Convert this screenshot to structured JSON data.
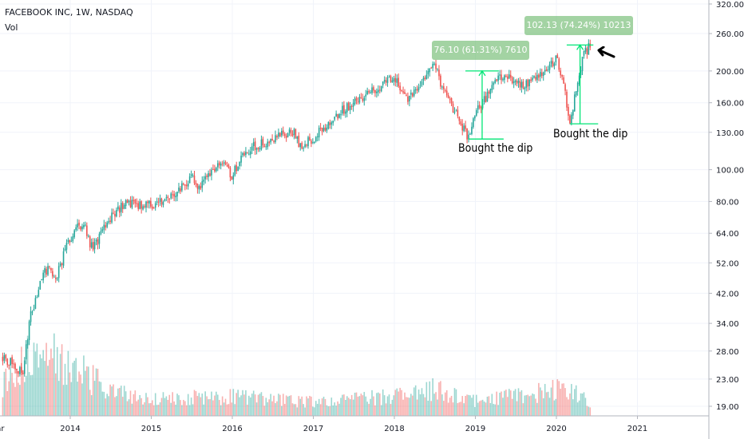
{
  "header": {
    "symbol": "FACEBOOK INC, 1W, NASDAQ",
    "indicator": "Vol"
  },
  "colors": {
    "up": "#26a69a",
    "down": "#ef5350",
    "annotation": "#00e676"
  },
  "annotations": {
    "measure_1": "76.10 (61.31%) 7610",
    "measure_2": "102.13 (74.24%) 10213",
    "label_1": "Bought the dip",
    "label_2": "Bought the dip"
  },
  "chart_data": {
    "type": "candlestick",
    "title": "FACEBOOK INC, 1W, NASDAQ",
    "y_scale": "log",
    "y_ticks": [
      "320.00",
      "260.00",
      "200.00",
      "160.00",
      "130.00",
      "100.00",
      "80.00",
      "64.00",
      "52.00",
      "42.00",
      "34.00",
      "28.00",
      "23.00",
      "19.00"
    ],
    "x_ticks": [
      "Mar",
      "2014",
      "2015",
      "2016",
      "2017",
      "2018",
      "2019",
      "2020",
      "2021"
    ],
    "price_path": [
      {
        "date": "2013-03",
        "close": 27
      },
      {
        "date": "2013-05",
        "close": 25
      },
      {
        "date": "2013-06",
        "close": 24
      },
      {
        "date": "2013-07",
        "close": 35
      },
      {
        "date": "2013-08",
        "close": 41
      },
      {
        "date": "2013-09",
        "close": 50
      },
      {
        "date": "2013-10",
        "close": 49
      },
      {
        "date": "2013-11",
        "close": 47
      },
      {
        "date": "2013-12",
        "close": 55
      },
      {
        "date": "2014-01",
        "close": 62
      },
      {
        "date": "2014-03",
        "close": 70
      },
      {
        "date": "2014-04",
        "close": 58
      },
      {
        "date": "2014-05",
        "close": 60
      },
      {
        "date": "2014-07",
        "close": 72
      },
      {
        "date": "2014-09",
        "close": 79
      },
      {
        "date": "2015-01",
        "close": 78
      },
      {
        "date": "2015-04",
        "close": 83
      },
      {
        "date": "2015-07",
        "close": 95
      },
      {
        "date": "2015-08",
        "close": 86
      },
      {
        "date": "2015-11",
        "close": 107
      },
      {
        "date": "2016-01",
        "close": 96
      },
      {
        "date": "2016-02",
        "close": 106
      },
      {
        "date": "2016-04",
        "close": 117
      },
      {
        "date": "2016-07",
        "close": 124
      },
      {
        "date": "2016-10",
        "close": 131
      },
      {
        "date": "2016-11",
        "close": 117
      },
      {
        "date": "2017-01",
        "close": 125
      },
      {
        "date": "2017-05",
        "close": 150
      },
      {
        "date": "2017-09",
        "close": 172
      },
      {
        "date": "2018-01",
        "close": 190
      },
      {
        "date": "2018-03",
        "close": 160
      },
      {
        "date": "2018-04",
        "close": 173
      },
      {
        "date": "2018-07",
        "close": 214
      },
      {
        "date": "2018-08",
        "close": 176
      },
      {
        "date": "2018-11",
        "close": 137
      },
      {
        "date": "2018-12",
        "close": 124
      },
      {
        "date": "2019-01",
        "close": 150
      },
      {
        "date": "2019-03",
        "close": 170
      },
      {
        "date": "2019-04",
        "close": 193
      },
      {
        "date": "2019-06",
        "close": 190
      },
      {
        "date": "2019-08",
        "close": 183
      },
      {
        "date": "2019-10",
        "close": 190
      },
      {
        "date": "2019-12",
        "close": 205
      },
      {
        "date": "2020-01",
        "close": 220
      },
      {
        "date": "2020-02",
        "close": 190
      },
      {
        "date": "2020-03",
        "close": 138
      },
      {
        "date": "2020-04",
        "close": 180
      },
      {
        "date": "2020-05",
        "close": 225
      },
      {
        "date": "2020-06",
        "close": 240
      }
    ],
    "volume_profile": [
      {
        "date": "2013-03",
        "level": 0.45
      },
      {
        "date": "2013-05",
        "level": 0.7
      },
      {
        "date": "2013-07",
        "level": 1.0
      },
      {
        "date": "2014-01",
        "level": 0.75
      },
      {
        "date": "2014-07",
        "level": 0.35
      },
      {
        "date": "2015-01",
        "level": 0.25
      },
      {
        "date": "2016-01",
        "level": 0.28
      },
      {
        "date": "2017-01",
        "level": 0.2
      },
      {
        "date": "2018-03",
        "level": 0.3
      },
      {
        "date": "2018-07",
        "level": 0.4
      },
      {
        "date": "2019-01",
        "level": 0.22
      },
      {
        "date": "2020-03",
        "level": 0.4
      },
      {
        "date": "2020-06",
        "level": 0.2
      }
    ],
    "measurements": [
      {
        "from": {
          "date": "2018-12",
          "price": 124
        },
        "to": {
          "date": "2019-04",
          "price": 200
        }
      },
      {
        "from": {
          "date": "2020-03",
          "price": 138
        },
        "to": {
          "date": "2020-06",
          "price": 240
        }
      }
    ]
  }
}
